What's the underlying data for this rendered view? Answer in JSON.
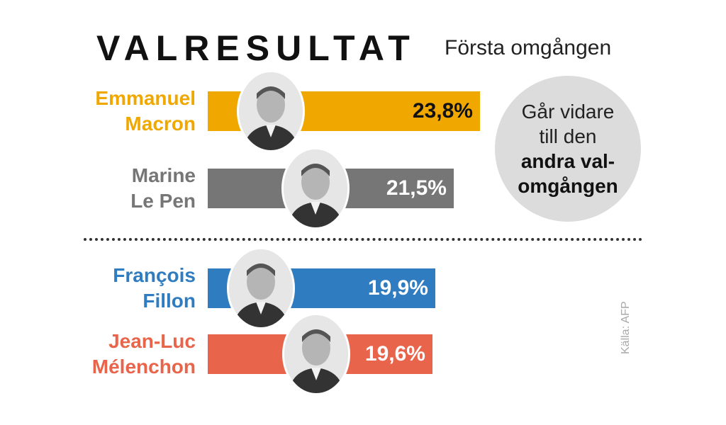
{
  "title": "VALRESULTAT",
  "subtitle": "Första omgången",
  "colors": {
    "macron": "#f0a800",
    "lepen": "#767676",
    "fillon": "#2f7dc0",
    "melenchon": "#e8644a"
  },
  "bubble": {
    "line1": "Går vidare",
    "line2": "till den",
    "line3": "andra val-",
    "line4": "omgången"
  },
  "source": "Källa: AFP",
  "chart_data": {
    "type": "bar",
    "orientation": "horizontal",
    "title": "VALRESULTAT",
    "subtitle": "Första omgången",
    "categories": [
      "Emmanuel Macron",
      "Marine Le Pen",
      "François Fillon",
      "Jean-Luc Mélenchon"
    ],
    "values": [
      23.8,
      21.5,
      19.9,
      19.6
    ],
    "value_labels": [
      "23,8%",
      "21,5%",
      "19,9%",
      "19,6%"
    ],
    "candidates": [
      {
        "first": "Emmanuel",
        "last": "Macron",
        "value": 23.8,
        "label": "23,8%",
        "color": "#f0a800",
        "label_color": "#111111",
        "name_color": "#f0a800"
      },
      {
        "first": "Marine",
        "last": "Le Pen",
        "value": 21.5,
        "label": "21,5%",
        "color": "#767676",
        "label_color": "#ffffff",
        "name_color": "#767676"
      },
      {
        "first": "François",
        "last": "Fillon",
        "value": 19.9,
        "label": "19,9%",
        "color": "#2f7dc0",
        "label_color": "#ffffff",
        "name_color": "#2f7dc0"
      },
      {
        "first": "Jean-Luc",
        "last": "Mélenchon",
        "value": 19.6,
        "label": "19,6%",
        "color": "#e8644a",
        "label_color": "#ffffff",
        "name_color": "#e8644a"
      }
    ],
    "xlabel": "",
    "ylabel": "",
    "grid": false,
    "legend": "none",
    "unit": "%"
  }
}
